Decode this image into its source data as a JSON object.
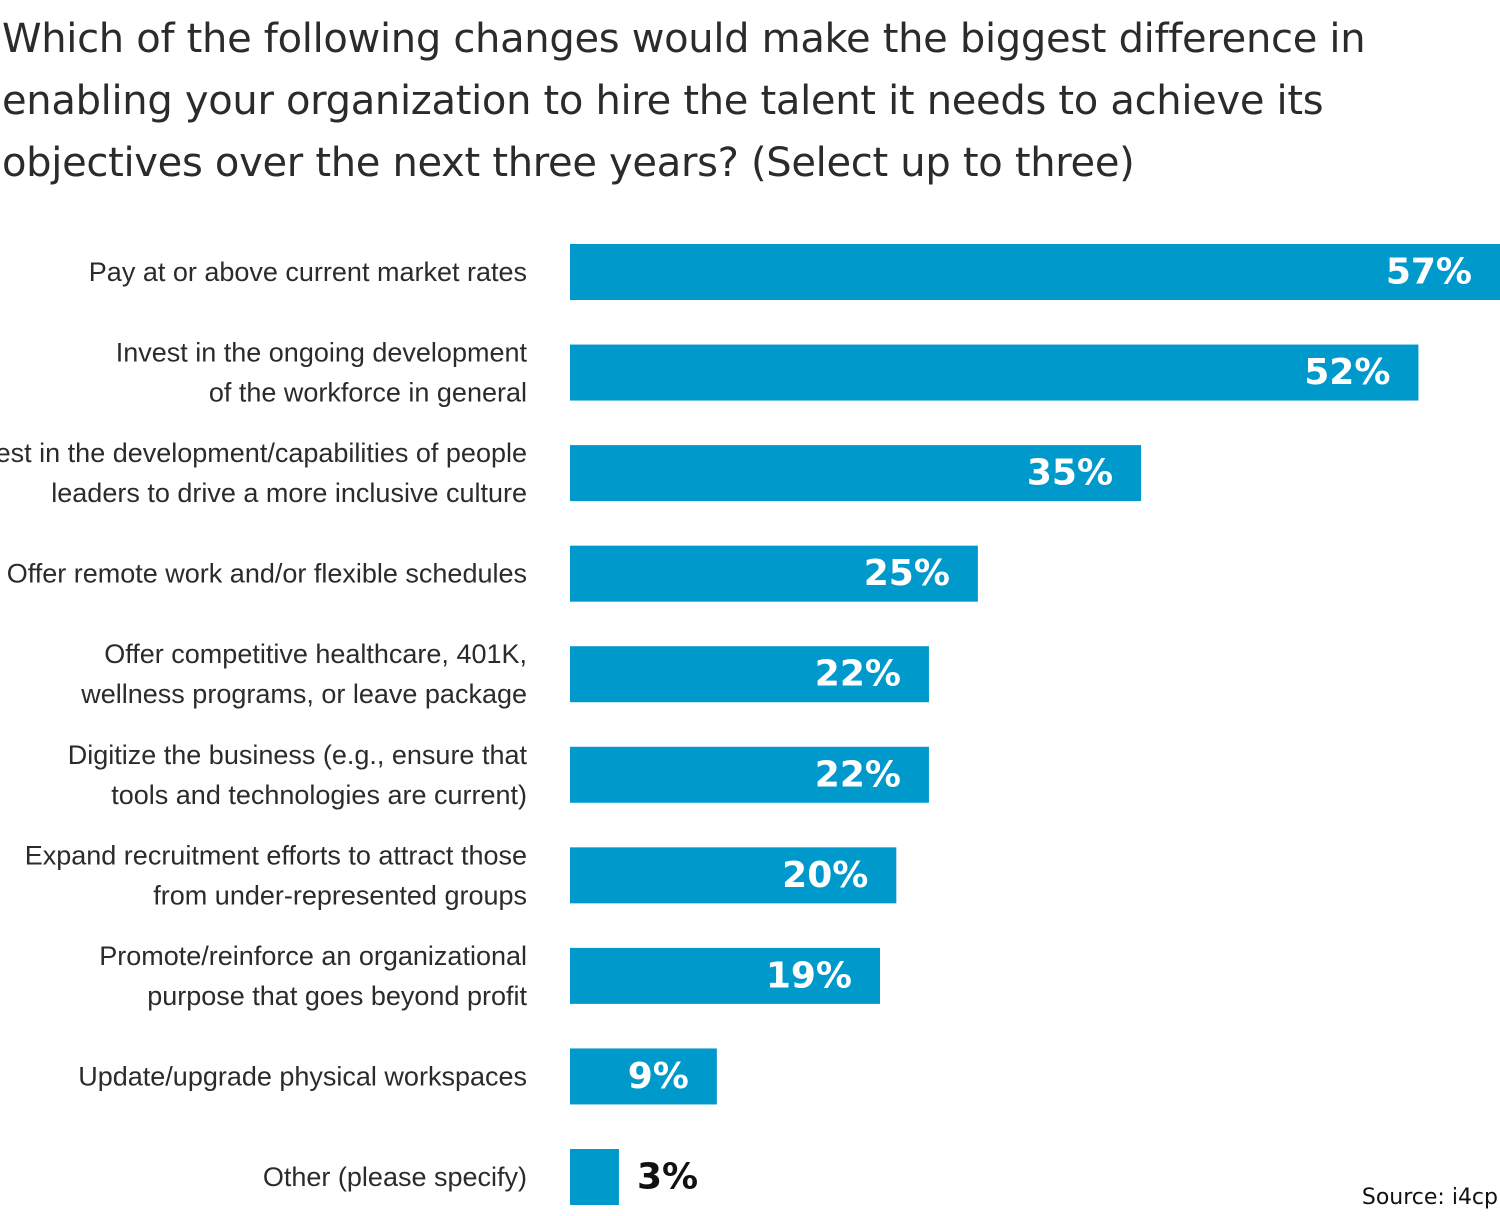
{
  "title": "Which of the following changes would make the biggest difference in enabling your organization to hire the talent it needs to achieve its objectives over the next three years? (Select up to three)",
  "source": "Source: i4cp",
  "colors": {
    "bar": "#0099CC",
    "label_inside": "#ffffff",
    "label_outside": "#111111",
    "text": "#2b2b2b"
  },
  "chart_data": {
    "type": "bar",
    "orientation": "horizontal",
    "title": "Which of the following changes would make the biggest difference in enabling your organization to hire the talent it needs to achieve its objectives over the next three years? (Select up to three)",
    "xlabel": "",
    "ylabel": "",
    "grid": false,
    "value_suffix": "%",
    "xlim": [
      0,
      57
    ],
    "categories": [
      [
        "Pay at or above current market rates"
      ],
      [
        "Invest in the ongoing development",
        "of the workforce in general"
      ],
      [
        "Invest in the development/capabilities of people",
        "leaders to drive a more inclusive culture"
      ],
      [
        "Offer remote work and/or flexible schedules"
      ],
      [
        "Offer competitive healthcare, 401K,",
        "wellness programs, or leave package"
      ],
      [
        "Digitize the business (e.g., ensure that",
        "tools and technologies are current)"
      ],
      [
        "Expand recruitment efforts to attract those",
        "from under-represented groups"
      ],
      [
        "Promote/reinforce an organizational",
        "purpose that goes beyond profit"
      ],
      [
        "Update/upgrade physical workspaces"
      ],
      [
        "Other (please specify)"
      ]
    ],
    "values": [
      57,
      52,
      35,
      25,
      22,
      22,
      20,
      19,
      9,
      3
    ],
    "labels": [
      "57%",
      "52%",
      "35%",
      "25%",
      "22%",
      "22%",
      "20%",
      "19%",
      "9%",
      "3%"
    ]
  }
}
